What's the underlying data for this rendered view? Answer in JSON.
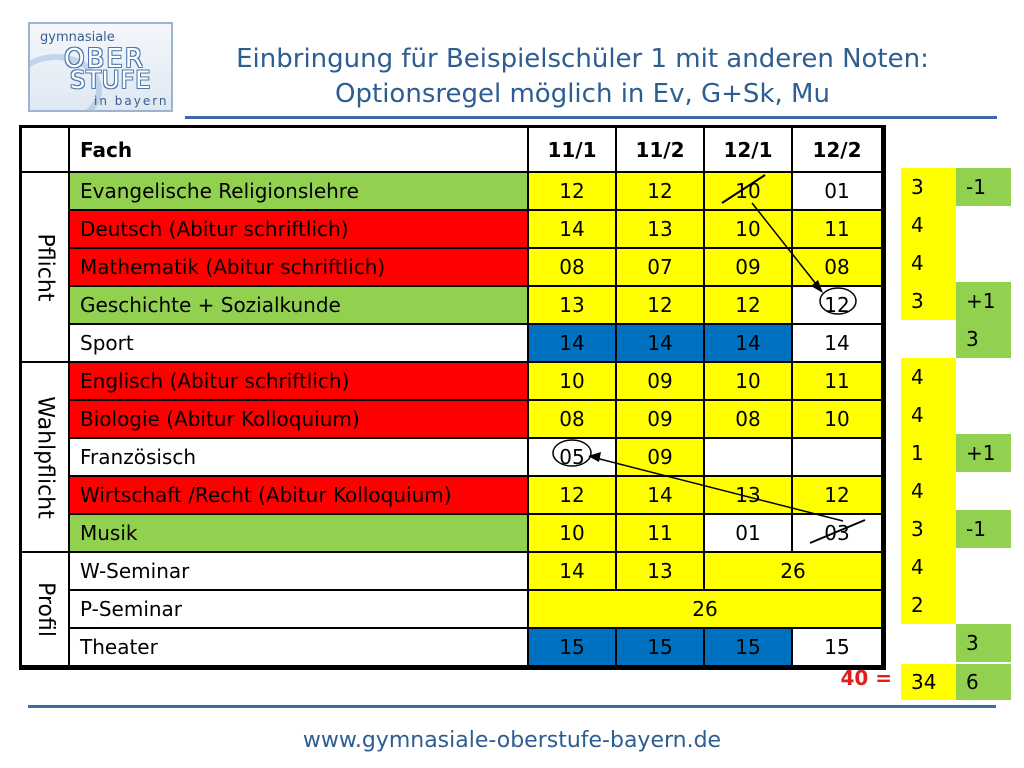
{
  "logo": {
    "line1": "gymnasiale",
    "line2": "OBER",
    "line3": "STUFE",
    "line4": "in bayern"
  },
  "title": {
    "line1": "Einbringung für Beispielschüler 1 mit anderen Noten:",
    "line2": "Optionsregel möglich in Ev, G+Sk, Mu"
  },
  "table": {
    "headers": [
      "Fach",
      "11/1",
      "11/2",
      "12/1",
      "12/2"
    ],
    "groups": [
      "Pflicht",
      "Wahlpflicht",
      "Profil"
    ],
    "rows": [
      {
        "subject": "Evangelische Religionslehre",
        "grades": [
          "12",
          "12",
          "10",
          "01"
        ],
        "side": [
          "3",
          "-1"
        ]
      },
      {
        "subject": "Deutsch (Abitur schriftlich)",
        "grades": [
          "14",
          "13",
          "10",
          "11"
        ],
        "side": [
          "4",
          ""
        ]
      },
      {
        "subject": "Mathematik (Abitur schriftlich)",
        "grades": [
          "08",
          "07",
          "09",
          "08"
        ],
        "side": [
          "4",
          ""
        ]
      },
      {
        "subject": "Geschichte + Sozialkunde",
        "grades": [
          "13",
          "12",
          "12",
          "12"
        ],
        "side": [
          "3",
          "+1"
        ]
      },
      {
        "subject": "Sport",
        "grades": [
          "14",
          "14",
          "14",
          "14"
        ],
        "side": [
          "",
          "3"
        ]
      },
      {
        "subject": "Englisch (Abitur schriftlich)",
        "grades": [
          "10",
          "09",
          "10",
          "11"
        ],
        "side": [
          "4",
          ""
        ]
      },
      {
        "subject": "Biologie (Abitur Kolloquium)",
        "grades": [
          "08",
          "09",
          "08",
          "10"
        ],
        "side": [
          "4",
          ""
        ]
      },
      {
        "subject": "Französisch",
        "grades": [
          "05",
          "09",
          "",
          ""
        ],
        "side": [
          "1",
          "+1"
        ]
      },
      {
        "subject": "Wirtschaft /Recht (Abitur Kolloquium)",
        "grades": [
          "12",
          "14",
          "13",
          "12"
        ],
        "side": [
          "4",
          ""
        ]
      },
      {
        "subject": "Musik",
        "grades": [
          "10",
          "11",
          "01",
          "03"
        ],
        "side": [
          "3",
          "-1"
        ]
      },
      {
        "subject": "W-Seminar",
        "grades": [
          "14",
          "13",
          "26"
        ],
        "side": [
          "4",
          ""
        ]
      },
      {
        "subject": "P-Seminar",
        "grades": [
          "26"
        ],
        "side": [
          "2",
          ""
        ]
      },
      {
        "subject": "Theater",
        "grades": [
          "15",
          "15",
          "15",
          "15"
        ],
        "side": [
          "",
          "3"
        ]
      }
    ],
    "total_label": "40 =",
    "totals": [
      "34",
      "6"
    ]
  },
  "colors": {
    "green": "#92d050",
    "red": "#ff0000",
    "yellow": "#ffff00",
    "blue": "#0070c0",
    "title_blue": "#2e5d92",
    "total_red": "#e31c1c"
  },
  "footer": "www.gymnasiale-oberstufe-bayern.de"
}
